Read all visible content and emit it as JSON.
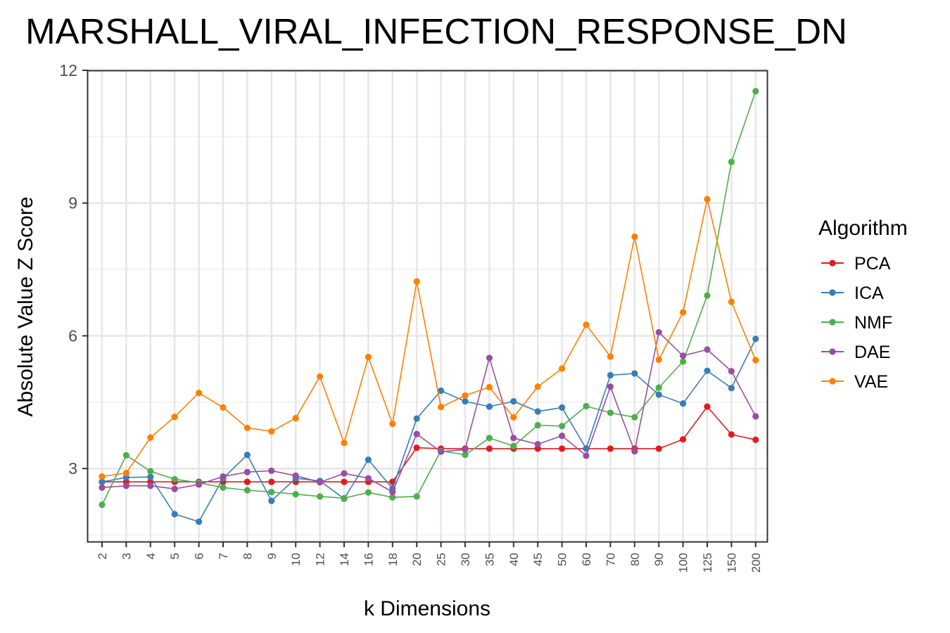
{
  "chart_data": {
    "type": "line",
    "title": "MARSHALL_VIRAL_INFECTION_RESPONSE_DN",
    "xlabel": "k Dimensions",
    "ylabel": "Absolute Value Z Score",
    "categories": [
      "2",
      "3",
      "4",
      "5",
      "6",
      "7",
      "8",
      "9",
      "10",
      "12",
      "14",
      "16",
      "18",
      "20",
      "25",
      "30",
      "35",
      "40",
      "45",
      "50",
      "60",
      "70",
      "80",
      "90",
      "100",
      "125",
      "150",
      "200"
    ],
    "y_ticks": [
      3,
      6,
      9,
      12
    ],
    "ylim": [
      1.35,
      12
    ],
    "grid": true,
    "legend": {
      "title": "Algorithm",
      "position": "right"
    },
    "series": [
      {
        "name": "PCA",
        "color": "#E41A1C",
        "values": [
          2.7,
          2.7,
          2.7,
          2.7,
          2.7,
          2.7,
          2.7,
          2.7,
          2.7,
          2.7,
          2.7,
          2.7,
          2.7,
          3.47,
          3.45,
          3.45,
          3.45,
          3.45,
          3.45,
          3.45,
          3.45,
          3.45,
          3.45,
          3.45,
          3.66,
          4.4,
          3.77,
          3.65
        ]
      },
      {
        "name": "ICA",
        "color": "#377EB8",
        "values": [
          2.7,
          2.8,
          2.81,
          1.97,
          1.8,
          2.78,
          3.31,
          2.27,
          2.78,
          2.72,
          2.32,
          3.2,
          2.55,
          4.13,
          4.76,
          4.52,
          4.4,
          4.52,
          4.29,
          4.38,
          3.45,
          5.11,
          5.15,
          4.67,
          4.47,
          5.21,
          4.82,
          5.93
        ]
      },
      {
        "name": "NMF",
        "color": "#4DAF4A",
        "values": [
          2.18,
          3.3,
          2.94,
          2.76,
          2.68,
          2.57,
          2.51,
          2.47,
          2.42,
          2.37,
          2.33,
          2.46,
          2.35,
          2.37,
          3.4,
          3.31,
          3.69,
          3.51,
          3.98,
          3.96,
          4.41,
          4.26,
          4.16,
          4.83,
          5.42,
          6.91,
          9.93,
          11.53
        ]
      },
      {
        "name": "DAE",
        "color": "#984EA3",
        "values": [
          2.57,
          2.61,
          2.61,
          2.54,
          2.64,
          2.82,
          2.92,
          2.95,
          2.84,
          2.69,
          2.89,
          2.78,
          2.47,
          3.78,
          3.38,
          3.43,
          5.5,
          3.69,
          3.55,
          3.74,
          3.29,
          4.85,
          3.39,
          6.08,
          5.55,
          5.69,
          5.2,
          4.18
        ]
      },
      {
        "name": "VAE",
        "color": "#FF7F00",
        "values": [
          2.82,
          2.9,
          3.7,
          4.17,
          4.71,
          4.38,
          3.92,
          3.84,
          4.14,
          5.08,
          3.58,
          5.52,
          4.01,
          7.23,
          4.39,
          4.65,
          4.84,
          4.16,
          4.85,
          5.26,
          6.25,
          5.53,
          8.24,
          5.46,
          6.53,
          9.09,
          6.77,
          5.45
        ]
      }
    ]
  }
}
